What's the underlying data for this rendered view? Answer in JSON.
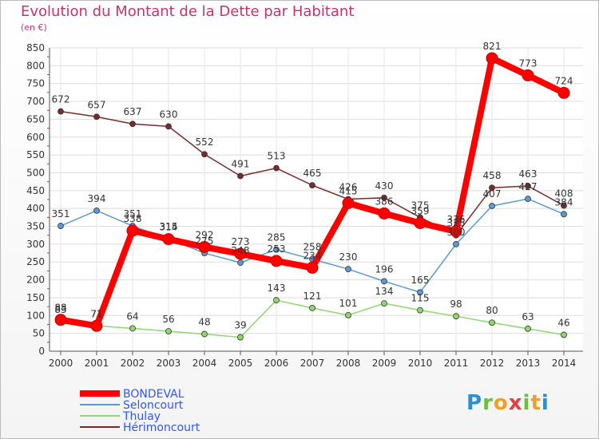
{
  "chart_data": {
    "type": "line",
    "title": "Evolution du Montant de la Dette par Habitant",
    "subtitle": "(en €)",
    "xlabel": "",
    "ylabel": "",
    "ylim": [
      0,
      850
    ],
    "yticks": [
      0,
      50,
      100,
      150,
      200,
      250,
      300,
      350,
      400,
      450,
      500,
      550,
      600,
      650,
      700,
      750,
      800,
      850
    ],
    "categories": [
      "2000",
      "2001",
      "2002",
      "2003",
      "2004",
      "2005",
      "2006",
      "2007",
      "2008",
      "2009",
      "2010",
      "2011",
      "2012",
      "2013",
      "2014"
    ],
    "grid": true,
    "legend_position": "bottom-left",
    "series": [
      {
        "name": "BONDEVAL",
        "color": "#ff0000",
        "values": [
          88,
          71,
          338,
          314,
          292,
          273,
          253,
          234,
          415,
          386,
          359,
          336,
          821,
          773,
          724
        ]
      },
      {
        "name": "Seloncourt",
        "color": "#5b9bd5",
        "values": [
          351,
          394,
          351,
          315,
          275,
          248,
          285,
          258,
          230,
          196,
          165,
          300,
          407,
          427,
          384
        ]
      },
      {
        "name": "Thulay",
        "color": "#8fd86b",
        "values": [
          83,
          71,
          64,
          56,
          48,
          39,
          143,
          121,
          101,
          134,
          115,
          98,
          80,
          63,
          46
        ]
      },
      {
        "name": "Hérimoncourt",
        "color": "#7a2a2a",
        "values": [
          672,
          657,
          637,
          630,
          552,
          491,
          513,
          465,
          426,
          430,
          375,
          325,
          458,
          463,
          408
        ]
      }
    ]
  },
  "logo": {
    "letters": [
      "P",
      "r",
      "o",
      "x",
      "i",
      "t",
      "i"
    ],
    "colors": [
      "#2b8fd6",
      "#6cbf3c",
      "#f0a020",
      "#e04040",
      "#6cbf3c",
      "#f0a020",
      "#2b8fd6"
    ]
  }
}
